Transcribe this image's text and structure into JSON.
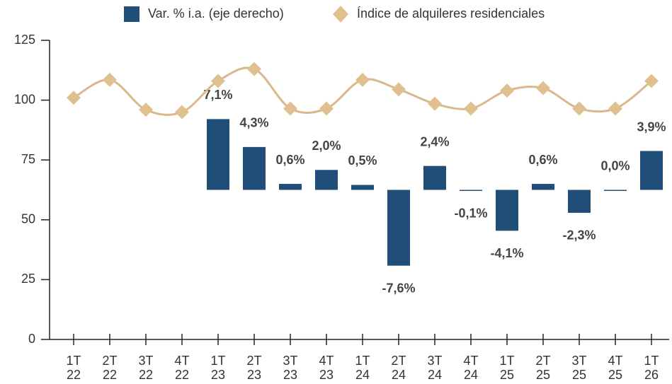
{
  "chart_data": {
    "type": "bar_line",
    "categories": [
      "1T\n22",
      "2T\n22",
      "3T\n22",
      "4T\n22",
      "1T\n23",
      "2T\n23",
      "3T\n23",
      "4T\n23",
      "1T\n24",
      "2T\n24",
      "3T\n24",
      "4T\n24",
      "1T\n25",
      "2T\n25",
      "3T\n25",
      "4T\n25",
      "1T\n26"
    ],
    "series": [
      {
        "name": "Var. % i.a. (eje derecho)",
        "type": "bar",
        "axis": "y2",
        "color": "#1f4e79",
        "values": [
          null,
          null,
          null,
          null,
          7.1,
          4.3,
          0.6,
          2.0,
          0.5,
          -7.6,
          2.4,
          -0.1,
          -4.1,
          0.6,
          -2.3,
          0.0,
          3.9
        ],
        "value_labels": [
          null,
          null,
          null,
          null,
          "7,1%",
          "4,3%",
          "0,6%",
          "2,0%",
          "0,5%",
          "-7,6%",
          "2,4%",
          "-0,1%",
          "-4,1%",
          "0,6%",
          "-2,3%",
          "0,0%",
          "3,9%"
        ]
      },
      {
        "name": "Índice de alquileres residenciales",
        "type": "line",
        "color": "#d9b98a",
        "values": [
          101,
          108.5,
          96,
          95,
          108,
          113,
          96.5,
          96.5,
          108.5,
          104.5,
          98.5,
          96.5,
          104,
          105,
          96.5,
          96.5,
          108
        ]
      }
    ],
    "ylim": [
      0,
      125
    ],
    "yticks": [
      0,
      25,
      50,
      75,
      100,
      125
    ],
    "y2lim": [
      -15,
      15
    ],
    "legend": "top"
  }
}
